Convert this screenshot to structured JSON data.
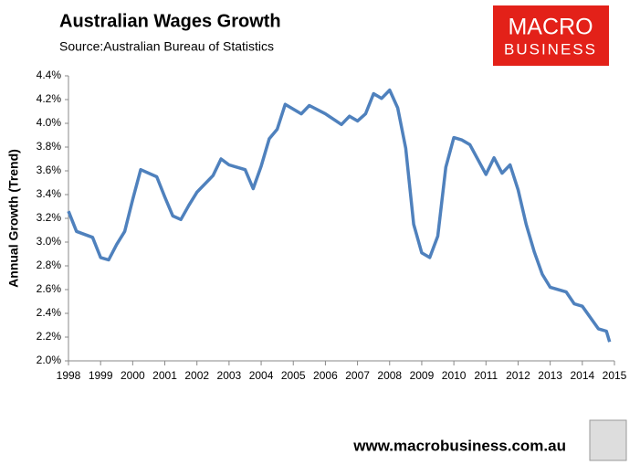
{
  "chart_data": {
    "type": "line",
    "title": "Australian Wages Growth",
    "subtitle": "Source:Australian Bureau of Statistics",
    "y_label": "Annual Growth (Trend)",
    "logo": [
      "MACRO",
      "BUSINESS"
    ],
    "footer": "www.macrobusiness.com.au",
    "xlim": [
      1998,
      2015
    ],
    "xticks": [
      1998,
      1999,
      2000,
      2001,
      2002,
      2003,
      2004,
      2005,
      2006,
      2007,
      2008,
      2009,
      2010,
      2011,
      2012,
      2013,
      2014,
      2015
    ],
    "ylim": [
      2.0,
      4.4
    ],
    "yticks": [
      {
        "value": 2.0,
        "label": "2.0%"
      },
      {
        "value": 2.2,
        "label": "2.2%"
      },
      {
        "value": 2.4,
        "label": "2.4%"
      },
      {
        "value": 2.6,
        "label": "2.6%"
      },
      {
        "value": 2.8,
        "label": "2.8%"
      },
      {
        "value": 3.0,
        "label": "3.0%"
      },
      {
        "value": 3.2,
        "label": "3.2%"
      },
      {
        "value": 3.4,
        "label": "3.4%"
      },
      {
        "value": 3.6,
        "label": "3.6%"
      },
      {
        "value": 3.8,
        "label": "3.8%"
      },
      {
        "value": 4.0,
        "label": "4.0%"
      },
      {
        "value": 4.2,
        "label": "4.2%"
      },
      {
        "value": 4.4,
        "label": "4.4%"
      }
    ],
    "grid": false,
    "series": [
      {
        "color": "#4f81bd",
        "x": [
          1998.0,
          1998.25,
          1998.75,
          1999.0,
          1999.25,
          1999.5,
          1999.75,
          2000.0,
          2000.25,
          2000.75,
          2001.0,
          2001.25,
          2001.5,
          2001.75,
          2002.0,
          2002.5,
          2002.75,
          2003.0,
          2003.5,
          2003.75,
          2004.0,
          2004.25,
          2004.5,
          2004.75,
          2005.25,
          2005.5,
          2006.0,
          2006.5,
          2006.75,
          2007.0,
          2007.25,
          2007.5,
          2007.75,
          2008.0,
          2008.25,
          2008.5,
          2008.75,
          2009.0,
          2009.25,
          2009.5,
          2009.75,
          2010.0,
          2010.25,
          2010.5,
          2011.0,
          2011.25,
          2011.5,
          2011.75,
          2012.0,
          2012.25,
          2012.5,
          2012.75,
          2013.0,
          2013.5,
          2013.75,
          2014.0,
          2014.5,
          2014.75,
          2014.85
        ],
        "values": [
          3.26,
          3.09,
          3.04,
          2.87,
          2.85,
          2.98,
          3.09,
          3.36,
          3.61,
          3.55,
          3.38,
          3.22,
          3.19,
          3.31,
          3.42,
          3.56,
          3.7,
          3.65,
          3.61,
          3.45,
          3.64,
          3.87,
          3.95,
          4.16,
          4.08,
          4.15,
          4.08,
          3.99,
          4.06,
          4.02,
          4.08,
          4.25,
          4.21,
          4.28,
          4.13,
          3.79,
          3.15,
          2.91,
          2.87,
          3.05,
          3.63,
          3.88,
          3.86,
          3.82,
          3.57,
          3.71,
          3.58,
          3.65,
          3.44,
          3.15,
          2.92,
          2.73,
          2.62,
          2.58,
          2.48,
          2.46,
          2.27,
          2.25,
          2.16
        ]
      }
    ]
  }
}
